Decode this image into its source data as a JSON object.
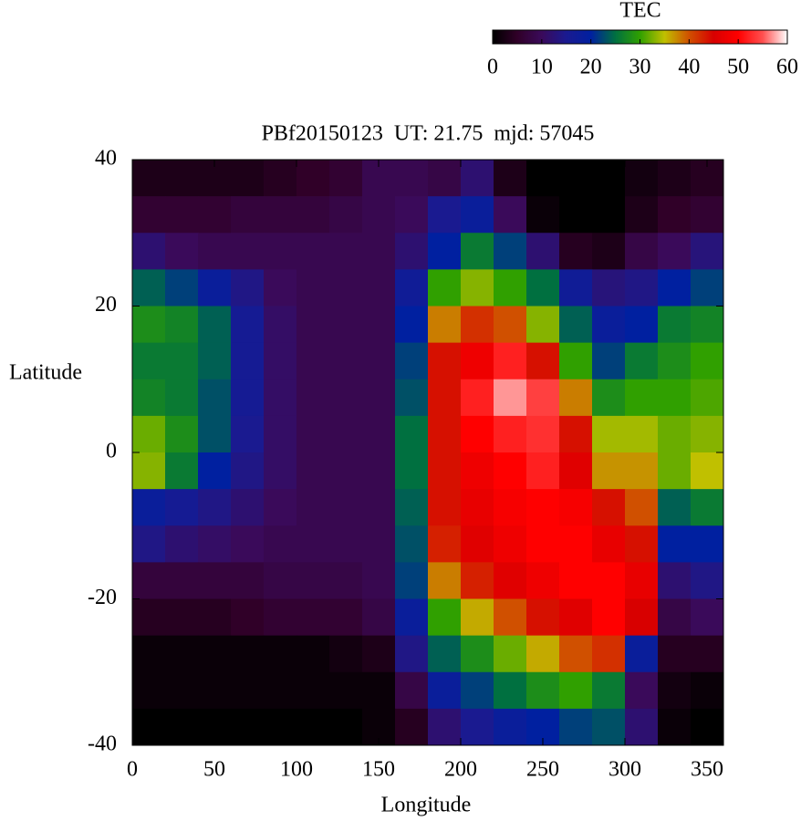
{
  "chart_data": {
    "type": "heatmap",
    "title": "PBf20150123  UT: 21.75  mjd: 57045",
    "x_label": "Longitude",
    "y_label": "Latitude",
    "colorbar_label": "TEC",
    "x": [
      10,
      30,
      50,
      70,
      90,
      110,
      130,
      150,
      170,
      190,
      210,
      230,
      250,
      270,
      290,
      310,
      330,
      350
    ],
    "y": [
      37.5,
      32.5,
      27.5,
      22.5,
      17.5,
      12.5,
      7.5,
      2.5,
      -2.5,
      -7.5,
      -12.5,
      -17.5,
      -22.5,
      -27.5,
      -32.5,
      -37.5
    ],
    "z": [
      [
        3,
        3,
        3,
        3,
        4,
        5,
        6,
        9,
        9,
        8,
        12,
        3,
        0,
        0,
        0,
        2,
        3,
        4
      ],
      [
        6,
        6,
        6,
        7,
        7,
        7,
        8,
        9,
        10,
        15,
        18,
        10,
        1,
        0,
        0,
        3,
        5,
        6
      ],
      [
        12,
        10,
        9,
        9,
        9,
        9,
        9,
        9,
        12,
        20,
        26,
        22,
        12,
        4,
        3,
        8,
        10,
        13
      ],
      [
        24,
        22,
        18,
        14,
        10,
        9,
        9,
        9,
        17,
        30,
        33,
        30,
        25,
        17,
        13,
        14,
        20,
        22
      ],
      [
        28,
        27,
        24,
        16,
        11,
        9,
        9,
        9,
        20,
        38,
        42,
        40,
        33,
        24,
        18,
        20,
        26,
        27
      ],
      [
        26,
        26,
        24,
        16,
        11,
        9,
        9,
        9,
        22,
        44,
        48,
        52,
        44,
        30,
        22,
        26,
        28,
        30
      ],
      [
        27,
        26,
        23,
        16,
        11,
        9,
        9,
        9,
        23,
        44,
        52,
        57,
        54,
        38,
        28,
        30,
        30,
        31
      ],
      [
        32,
        28,
        23,
        15,
        11,
        9,
        9,
        9,
        25,
        44,
        50,
        52,
        53,
        44,
        34,
        34,
        32,
        33
      ],
      [
        33,
        26,
        20,
        14,
        11,
        9,
        9,
        9,
        25,
        44,
        48,
        50,
        52,
        46,
        37,
        37,
        32,
        35
      ],
      [
        18,
        16,
        14,
        12,
        10,
        9,
        9,
        9,
        24,
        44,
        47,
        49,
        50,
        49,
        44,
        40,
        24,
        26
      ],
      [
        14,
        12,
        11,
        10,
        9,
        9,
        9,
        9,
        23,
        43,
        46,
        48,
        50,
        50,
        47,
        44,
        20,
        20
      ],
      [
        7,
        7,
        7,
        7,
        8,
        8,
        8,
        9,
        22,
        38,
        43,
        46,
        48,
        50,
        50,
        47,
        12,
        14
      ],
      [
        4,
        4,
        4,
        5,
        6,
        6,
        6,
        8,
        18,
        30,
        36,
        40,
        44,
        46,
        50,
        45,
        8,
        10
      ],
      [
        1,
        1,
        1,
        1,
        1,
        1,
        2,
        3,
        14,
        24,
        28,
        32,
        36,
        40,
        42,
        18,
        4,
        4
      ],
      [
        1,
        1,
        1,
        1,
        1,
        1,
        1,
        1,
        8,
        18,
        22,
        25,
        28,
        30,
        26,
        10,
        2,
        1
      ],
      [
        0,
        0,
        0,
        0,
        0,
        0,
        0,
        1,
        4,
        12,
        15,
        18,
        20,
        22,
        23,
        12,
        1,
        0
      ]
    ],
    "xlim": [
      0,
      360
    ],
    "xticks": [
      0,
      50,
      100,
      150,
      200,
      250,
      300,
      350
    ],
    "ylim": [
      -40,
      40
    ],
    "yticks": [
      -40,
      -20,
      0,
      20,
      40
    ],
    "zlim": [
      0,
      60
    ],
    "zticks": [
      0,
      10,
      20,
      30,
      40,
      50,
      60
    ],
    "colormap": [
      "#000000",
      "#300028",
      "#3a0a5a",
      "#1a1a90",
      "#0020a0",
      "#007040",
      "#30a000",
      "#c0c000",
      "#d05000",
      "#d80000",
      "#ff0000",
      "#ff5050",
      "#ffffff"
    ]
  }
}
